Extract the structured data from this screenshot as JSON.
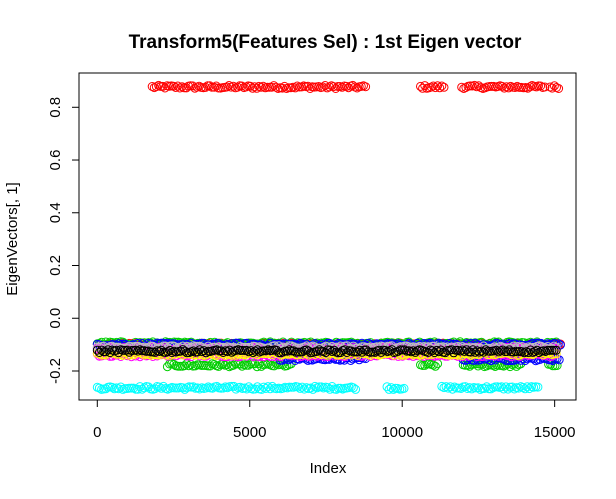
{
  "chart_data": {
    "type": "scatter",
    "title": "Transform5(Features Sel) : 1st Eigen vector",
    "xlabel": "Index",
    "ylabel": "EigenVectors[, 1]",
    "xlim": [
      -600,
      15700
    ],
    "ylim": [
      -0.31,
      0.93
    ],
    "x_ticks": [
      0,
      5000,
      10000,
      15000
    ],
    "x_tick_labels": [
      "0",
      "5000",
      "10000",
      "15000"
    ],
    "y_ticks": [
      -0.2,
      0.0,
      0.2,
      0.4,
      0.6,
      0.8
    ],
    "y_tick_labels": [
      "-0.2",
      "0.0",
      "0.2",
      "0.4",
      "0.6",
      "0.8"
    ],
    "grid": false,
    "marker": "open-circle",
    "series": [
      {
        "color": "#ff0000",
        "segments": [
          [
            1800,
            8800,
            0.877
          ],
          [
            10600,
            11400,
            0.877
          ],
          [
            11950,
            14700,
            0.877
          ],
          [
            14850,
            15150,
            0.877
          ],
          [
            0,
            15200,
            -0.1
          ]
        ]
      },
      {
        "color": "#00ffff",
        "segments": [
          [
            0,
            8500,
            -0.264
          ],
          [
            9500,
            10100,
            -0.264
          ],
          [
            11300,
            14500,
            -0.264
          ]
        ]
      },
      {
        "color": "#00cd00",
        "segments": [
          [
            2300,
            6400,
            -0.178
          ],
          [
            10600,
            11200,
            -0.178
          ],
          [
            12000,
            13900,
            -0.178
          ],
          [
            14800,
            15100,
            -0.178
          ],
          [
            0,
            15100,
            -0.095
          ]
        ]
      },
      {
        "color": "#0000ff",
        "segments": [
          [
            0,
            15200,
            -0.1
          ],
          [
            6000,
            8800,
            -0.155
          ],
          [
            12000,
            15150,
            -0.155
          ]
        ]
      },
      {
        "color": "#ff00ff",
        "segments": [
          [
            0,
            15100,
            -0.14
          ],
          [
            0,
            15100,
            -0.115
          ]
        ]
      },
      {
        "color": "#ffff00",
        "segments": [
          [
            0,
            15100,
            -0.135
          ]
        ]
      },
      {
        "color": "#bebebe",
        "segments": [
          [
            0,
            15100,
            -0.11
          ]
        ]
      },
      {
        "color": "#000000",
        "segments": [
          [
            0,
            15100,
            -0.125
          ]
        ]
      }
    ]
  }
}
